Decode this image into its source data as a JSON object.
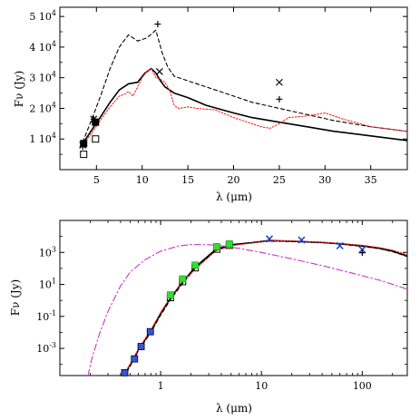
{
  "chart_data": [
    {
      "type": "scatter",
      "xlabel": "λ (μm)",
      "ylabel": "Fν (Jy)",
      "xscale": "linear",
      "yscale": "linear",
      "xlim": [
        1,
        39
      ],
      "ylim": [
        0,
        53000
      ],
      "x_ticks": [
        5,
        10,
        15,
        20,
        25,
        30,
        35
      ],
      "y_ticks": [
        {
          "value": 10000,
          "mant": "1 10",
          "exp": "4"
        },
        {
          "value": 20000,
          "mant": "2 10",
          "exp": "4"
        },
        {
          "value": 30000,
          "mant": "3 10",
          "exp": "4"
        },
        {
          "value": 40000,
          "mant": "4 10",
          "exp": "4"
        },
        {
          "value": 50000,
          "mant": "5 10",
          "exp": "4"
        }
      ],
      "series": [
        {
          "style": "solid",
          "color": "#000000",
          "x": [
            3.5,
            4.5,
            5.5,
            6.5,
            7.5,
            8.5,
            9.5,
            10.3,
            11.0,
            11.5,
            12.0,
            12.5,
            13.5,
            15,
            17,
            20,
            22,
            25,
            28,
            31,
            35,
            39
          ],
          "y": [
            8500,
            13000,
            17500,
            22000,
            26000,
            28000,
            28500,
            31500,
            33000,
            31500,
            29000,
            27000,
            25000,
            23500,
            21000,
            18500,
            17000,
            15500,
            14000,
            12500,
            11000,
            9500
          ]
        },
        {
          "style": "dashed",
          "color": "#000000",
          "x": [
            3.5,
            4.5,
            5.5,
            6.5,
            7.5,
            8.5,
            9.5,
            10.5,
            11.5,
            12.2,
            12.8,
            13.5,
            15,
            17,
            20,
            22,
            25,
            28,
            31,
            35,
            39
          ],
          "y": [
            9000,
            16500,
            24500,
            33000,
            40000,
            44000,
            42000,
            43000,
            45500,
            38000,
            33500,
            30500,
            29000,
            27000,
            24000,
            22000,
            20000,
            18000,
            16000,
            14000,
            12500
          ]
        },
        {
          "style": "dotted",
          "color": "#ff2020",
          "x": [
            3.5,
            4.5,
            5.5,
            6.5,
            7.5,
            8.0,
            8.5,
            9.0,
            9.5,
            10.0,
            10.5,
            11.0,
            11.5,
            12.0,
            12.5,
            13.0,
            13.5,
            14.0,
            15,
            16,
            18,
            20,
            22,
            23,
            24,
            25,
            26,
            28,
            30,
            31,
            32,
            35,
            39
          ],
          "y": [
            8000,
            12000,
            16500,
            20500,
            24000,
            24500,
            25500,
            24000,
            27000,
            30000,
            32000,
            33000,
            30000,
            29500,
            28500,
            26000,
            21000,
            20000,
            20500,
            20000,
            19500,
            17000,
            15000,
            14000,
            13500,
            15000,
            17000,
            17500,
            18500,
            17500,
            16500,
            14000,
            12500
          ]
        }
      ],
      "points": [
        {
          "marker": "open-square",
          "x": [
            3.6,
            4.9
          ],
          "y": [
            5000,
            10000
          ]
        },
        {
          "marker": "filled-square",
          "x": [
            3.6,
            4.9
          ],
          "y": [
            8500,
            15500
          ]
        },
        {
          "marker": "cross",
          "x": [
            3.5,
            4.7,
            11.9,
            25.0
          ],
          "y": [
            8000,
            16500,
            32000,
            28500
          ]
        },
        {
          "marker": "plus",
          "x": [
            3.5,
            4.7,
            11.7,
            25.0
          ],
          "y": [
            7500,
            16500,
            47500,
            23000
          ]
        }
      ]
    },
    {
      "type": "scatter",
      "xlabel": "λ (μm)",
      "ylabel": "Fν (Jy)",
      "xscale": "log",
      "yscale": "log",
      "xlim": [
        0.1,
        280
      ],
      "ylim": [
        2e-05,
        100000
      ],
      "x_ticks": [
        {
          "value": 1,
          "label": "1"
        },
        {
          "value": 10,
          "label": "10"
        },
        {
          "value": 100,
          "label": "100"
        }
      ],
      "y_ticks": [
        {
          "value": 0.001,
          "mant": "10",
          "exp": "-3"
        },
        {
          "value": 0.1,
          "mant": "10",
          "exp": "-1"
        },
        {
          "value": 10,
          "mant": "10",
          "exp": "1"
        },
        {
          "value": 1000,
          "mant": "10",
          "exp": "3"
        }
      ],
      "series": [
        {
          "style": "solid",
          "color": "#000000",
          "x": [
            0.43,
            0.5,
            0.6,
            0.8,
            1.0,
            1.25,
            1.6,
            2.2,
            3.5,
            5,
            8,
            12,
            20,
            40,
            60,
            100,
            150,
            200,
            280
          ],
          "y": [
            2e-05,
            0.0001,
            0.0008,
            0.012,
            0.15,
            1.4,
            11,
            120,
            1500,
            3000,
            4000,
            5500,
            5000,
            4200,
            3500,
            2600,
            1800,
            1200,
            600
          ]
        },
        {
          "style": "dashed",
          "color": "#000000",
          "x": [
            0.43,
            0.5,
            0.6,
            0.8,
            1.0,
            1.25,
            1.6,
            2.2,
            3.5,
            5,
            8,
            12,
            20,
            40,
            60,
            100,
            150,
            200,
            280
          ],
          "y": [
            1.5e-05,
            8e-05,
            0.0007,
            0.01,
            0.12,
            1.1,
            9,
            100,
            1300,
            2800,
            4000,
            5000,
            4800,
            4000,
            3300,
            2400,
            1700,
            1100,
            550
          ]
        },
        {
          "style": "dotted",
          "color": "#ff2020",
          "x": [
            0.43,
            0.5,
            0.6,
            0.8,
            1.0,
            1.25,
            1.6,
            2.2,
            3.5,
            5,
            8,
            12,
            20,
            40,
            60,
            100,
            150,
            200,
            280
          ],
          "y": [
            2e-05,
            0.0001,
            0.0009,
            0.014,
            0.18,
            1.6,
            12,
            90,
            1200,
            2600,
            3800,
            5200,
            5200,
            4300,
            3600,
            2800,
            2000,
            1400,
            700
          ]
        },
        {
          "style": "dashdot",
          "color": "#cc33cc",
          "x": [
            0.19,
            0.21,
            0.25,
            0.3,
            0.4,
            0.5,
            0.7,
            1.0,
            1.5,
            2.0,
            3,
            4,
            6,
            10,
            20,
            40,
            80,
            150,
            280
          ],
          "y": [
            2e-05,
            0.0003,
            0.01,
            0.2,
            8,
            60,
            350,
            1200,
            2500,
            3100,
            3000,
            2600,
            1800,
            1000,
            400,
            150,
            50,
            18,
            5
          ]
        }
      ],
      "points": [
        {
          "marker": "blue-square",
          "x": [
            0.44,
            0.55,
            0.64,
            0.79
          ],
          "y": [
            3e-05,
            0.00022,
            0.0013,
            0.011
          ]
        },
        {
          "marker": "open-square",
          "x": [
            1.25,
            1.65,
            2.2,
            3.6,
            4.8
          ],
          "y": [
            1.5,
            15,
            110,
            1600,
            2800
          ]
        },
        {
          "marker": "green-square",
          "x": [
            1.25,
            1.65,
            2.2,
            3.6,
            4.8
          ],
          "y": [
            2.2,
            22,
            160,
            2300,
            3400
          ]
        },
        {
          "marker": "blue-x",
          "x": [
            12,
            25,
            60,
            100
          ],
          "y": [
            7000,
            6000,
            2600,
            1500
          ]
        },
        {
          "marker": "plus",
          "x": [
            100
          ],
          "y": [
            950
          ]
        }
      ]
    }
  ]
}
